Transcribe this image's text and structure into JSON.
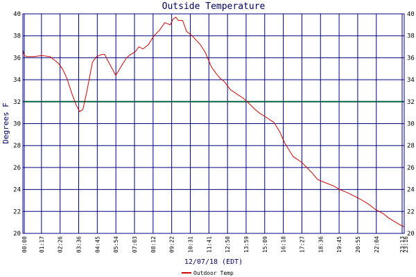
{
  "chart_data": {
    "type": "line",
    "title": "Outside Temperature",
    "xlabel": "12/07/18 (EDT)",
    "ylabel": "Degrees F",
    "ylim": [
      20,
      40
    ],
    "yticks": [
      20,
      22,
      24,
      26,
      28,
      30,
      32,
      34,
      36,
      38,
      40
    ],
    "x_range_minutes": [
      0,
      1397
    ],
    "xtick_labels": [
      "00:08",
      "01:17",
      "02:26",
      "03:36",
      "04:45",
      "05:54",
      "07:03",
      "08:12",
      "09:22",
      "10:31",
      "11:41",
      "12:50",
      "13:59",
      "15:09",
      "16:18",
      "17:27",
      "18:36",
      "19:45",
      "20:55",
      "22:04",
      "23:13",
      "23:16"
    ],
    "grid": true,
    "reference_line": {
      "y": 32,
      "color": "#006040"
    },
    "legend": {
      "position": "bottom-center"
    },
    "series": [
      {
        "name": "Outdoor Temp",
        "color": "#cc0000",
        "x": [
          0,
          5,
          15,
          40,
          69,
          100,
          115,
          130,
          145,
          160,
          180,
          195,
          208,
          220,
          235,
          255,
          270,
          280,
          290,
          300,
          310,
          325,
          340,
          360,
          380,
          395,
          410,
          425,
          440,
          460,
          480,
          500,
          520,
          540,
          550,
          560,
          570,
          585,
          600,
          620,
          650,
          668,
          690,
          710,
          724,
          735,
          745,
          760,
          790,
          808,
          830,
          850,
          870,
          890,
          920,
          940,
          960,
          990,
          1020,
          1060,
          1080,
          1110,
          1140,
          1160,
          1190,
          1230,
          1251,
          1270,
          1290,
          1320,
          1340,
          1360,
          1380,
          1397
        ],
        "y": [
          36.7,
          36.2,
          36.1,
          36.1,
          36.2,
          36.1,
          35.8,
          35.5,
          35.0,
          34.2,
          32.7,
          31.7,
          31.1,
          31.3,
          33.0,
          35.6,
          36.1,
          36.2,
          36.3,
          36.3,
          35.8,
          35.1,
          34.4,
          35.2,
          36.0,
          36.3,
          36.5,
          37.0,
          36.8,
          37.2,
          38.0,
          38.5,
          39.2,
          39.0,
          39.5,
          39.7,
          39.4,
          39.4,
          38.4,
          38.0,
          37.2,
          36.5,
          35.2,
          34.5,
          34.1,
          33.9,
          33.6,
          33.1,
          32.6,
          32.3,
          31.8,
          31.3,
          30.9,
          30.6,
          30.1,
          29.3,
          28.2,
          27.0,
          26.5,
          25.5,
          24.9,
          24.6,
          24.3,
          24.0,
          23.7,
          23.2,
          22.9,
          22.6,
          22.2,
          21.8,
          21.4,
          21.1,
          20.8,
          20.6
        ]
      }
    ]
  }
}
